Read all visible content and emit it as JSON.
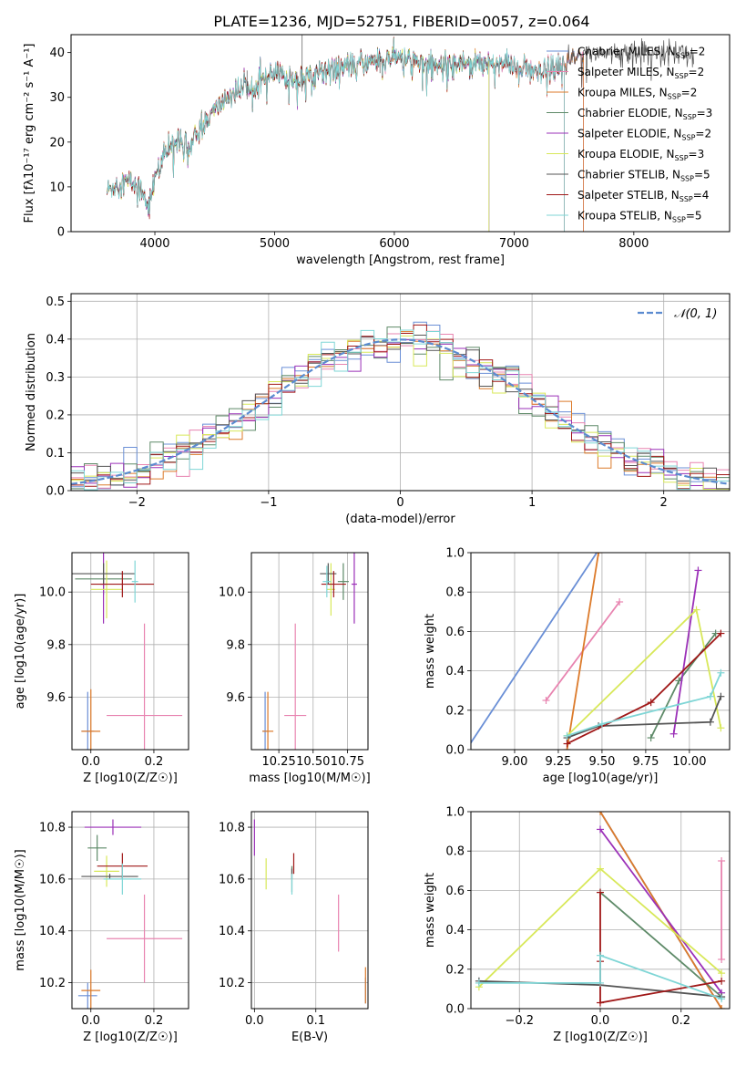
{
  "title": "PLATE=1236, MJD=52751, FIBERID=0057, z=0.064",
  "colors": {
    "Chabrier MILES": "#6a8fd6",
    "Salpeter MILES": "#e884b0",
    "Kroupa MILES": "#dc7a2a",
    "Chabrier ELODIE": "#5e8a68",
    "Salpeter ELODIE": "#9b30b8",
    "Kroupa ELODIE": "#d8e85a",
    "Chabrier STELIB": "#555555",
    "Salpeter STELIB": "#a01818",
    "Kroupa STELIB": "#7fd6d6"
  },
  "chart_data": [
    {
      "id": "spectrum",
      "type": "line",
      "title": "PLATE=1236, MJD=52751, FIBERID=0057, z=0.064",
      "xlabel": "wavelength [Angstrom, rest frame]",
      "ylabel": "Flux [fλ10⁻¹⁷ erg cm⁻² s⁻¹ A⁻¹]",
      "xlim": [
        3300,
        8800
      ],
      "ylim": [
        0,
        44
      ],
      "xticks": [
        4000,
        5000,
        6000,
        7000,
        8000
      ],
      "yticks": [
        0,
        10,
        20,
        30,
        40
      ],
      "grid": false,
      "legend_position": "top-right",
      "continuum": {
        "x": [
          3600,
          3700,
          3800,
          3900,
          3950,
          4000,
          4100,
          4200,
          4300,
          4400,
          4500,
          4600,
          4800,
          5000,
          5200,
          5400,
          5600,
          5800,
          6000,
          6200,
          6400,
          6600,
          6800,
          7000,
          7200,
          7400,
          7600
        ],
        "y": [
          9,
          11,
          11,
          9,
          6,
          12,
          18,
          21,
          19,
          24,
          27,
          30,
          33,
          35,
          34,
          36,
          37,
          38,
          39,
          38,
          37,
          38,
          38,
          37,
          35,
          37,
          40
        ]
      },
      "series": [
        {
          "name": "Chabrier MILES",
          "nssp": "2",
          "xmax": 7580
        },
        {
          "name": "Salpeter MILES",
          "nssp": "2",
          "xmax": 7580
        },
        {
          "name": "Kroupa MILES",
          "nssp": "2",
          "xmax": 7580
        },
        {
          "name": "Chabrier ELODIE",
          "nssp": "3",
          "xmax": 6790
        },
        {
          "name": "Salpeter ELODIE",
          "nssp": "2",
          "xmax": 6790
        },
        {
          "name": "Kroupa ELODIE",
          "nssp": "3",
          "xmax": 6790
        },
        {
          "name": "Chabrier STELIB",
          "nssp": "5",
          "xmax": 8500
        },
        {
          "name": "Salpeter STELIB",
          "nssp": "4",
          "xmax": 7420
        },
        {
          "name": "Kroupa STELIB",
          "nssp": "5",
          "xmax": 7420
        }
      ]
    },
    {
      "id": "residuals",
      "type": "line",
      "xlabel": "(data-model)/error",
      "ylabel": "Normed distribution",
      "xlim": [
        -2.5,
        2.5
      ],
      "ylim": [
        0,
        0.52
      ],
      "xticks": [
        -2,
        -1,
        0,
        1,
        2
      ],
      "yticks": [
        0.0,
        0.1,
        0.2,
        0.3,
        0.4,
        0.5
      ],
      "grid": true,
      "legend_position": "top-right",
      "gaussian_label": "𝒩(0, 1)",
      "bin_width": 0.1,
      "histogram_series": [
        "Chabrier MILES",
        "Salpeter MILES",
        "Kroupa MILES",
        "Chabrier ELODIE",
        "Salpeter ELODIE",
        "Kroupa ELODIE",
        "Chabrier STELIB",
        "Salpeter STELIB",
        "Kroupa STELIB"
      ]
    },
    {
      "id": "age_vs_Z",
      "type": "scatter",
      "xlabel": "Z [log10(Z/Z☉)]",
      "ylabel": "age  [log10(age/yr)]",
      "xlim": [
        -0.06,
        0.31
      ],
      "ylim": [
        9.4,
        10.15
      ],
      "xticks": [
        0.0,
        0.2
      ],
      "yticks": [
        9.6,
        9.8,
        10.0
      ],
      "grid": true,
      "points": [
        {
          "name": "Chabrier MILES",
          "x": -0.01,
          "y": 9.47,
          "xerr": 0.02,
          "yerr": 0.15
        },
        {
          "name": "Salpeter MILES",
          "x": 0.17,
          "y": 9.53,
          "xerr": 0.12,
          "yerr": 0.35
        },
        {
          "name": "Kroupa MILES",
          "x": 0.0,
          "y": 9.47,
          "xerr": 0.03,
          "yerr": 0.16
        },
        {
          "name": "Chabrier ELODIE",
          "x": 0.04,
          "y": 10.05,
          "xerr": 0.09,
          "yerr": 0.06
        },
        {
          "name": "Salpeter ELODIE",
          "x": 0.04,
          "y": 10.03,
          "xerr": 0.01,
          "yerr": 0.15
        },
        {
          "name": "Kroupa ELODIE",
          "x": 0.05,
          "y": 10.01,
          "xerr": 0.05,
          "yerr": 0.11
        },
        {
          "name": "Chabrier STELIB",
          "x": 0.04,
          "y": 10.07,
          "xerr": 0.1,
          "yerr": 0.04
        },
        {
          "name": "Salpeter STELIB",
          "x": 0.1,
          "y": 10.03,
          "xerr": 0.1,
          "yerr": 0.05
        },
        {
          "name": "Kroupa STELIB",
          "x": 0.14,
          "y": 10.04,
          "xerr": 0.01,
          "yerr": 0.08
        }
      ]
    },
    {
      "id": "age_vs_mass",
      "type": "scatter",
      "xlabel": "mass [log10(M/M☉)]",
      "ylabel": "",
      "xlim": [
        10.05,
        10.9
      ],
      "ylim": [
        9.4,
        10.15
      ],
      "xticks": [
        10.25,
        10.5,
        10.75
      ],
      "yticks": [
        9.6,
        9.8,
        10.0
      ],
      "grid": true,
      "points": [
        {
          "name": "Chabrier MILES",
          "x": 10.15,
          "y": 9.47,
          "xerr": 0.02,
          "yerr": 0.15
        },
        {
          "name": "Salpeter MILES",
          "x": 10.37,
          "y": 9.53,
          "xerr": 0.08,
          "yerr": 0.35
        },
        {
          "name": "Kroupa MILES",
          "x": 10.17,
          "y": 9.47,
          "xerr": 0.04,
          "yerr": 0.15
        },
        {
          "name": "Chabrier ELODIE",
          "x": 10.72,
          "y": 10.04,
          "xerr": 0.04,
          "yerr": 0.07
        },
        {
          "name": "Salpeter ELODIE",
          "x": 10.8,
          "y": 10.03,
          "xerr": 0.02,
          "yerr": 0.15
        },
        {
          "name": "Kroupa ELODIE",
          "x": 10.63,
          "y": 10.01,
          "xerr": 0.03,
          "yerr": 0.1
        },
        {
          "name": "Chabrier STELIB",
          "x": 10.61,
          "y": 10.07,
          "xerr": 0.06,
          "yerr": 0.04
        },
        {
          "name": "Salpeter STELIB",
          "x": 10.65,
          "y": 10.03,
          "xerr": 0.09,
          "yerr": 0.05
        },
        {
          "name": "Kroupa STELIB",
          "x": 10.6,
          "y": 10.04,
          "xerr": 0.03,
          "yerr": 0.06
        }
      ]
    },
    {
      "id": "weight_vs_age",
      "type": "line",
      "xlabel": "age  [log10(age/yr)]",
      "ylabel": "mass weight",
      "xlim": [
        8.75,
        10.23
      ],
      "ylim": [
        0,
        1
      ],
      "xticks": [
        9.0,
        9.25,
        9.5,
        9.75,
        10.0
      ],
      "yticks": [
        0.0,
        0.2,
        0.4,
        0.6,
        0.8,
        1.0
      ],
      "grid": true,
      "series": [
        {
          "name": "Chabrier MILES",
          "x": [
            8.5,
            9.47
          ],
          "y": [
            -0.3,
            1.0
          ],
          "markers": false
        },
        {
          "name": "Salpeter MILES",
          "x": [
            9.18,
            9.6
          ],
          "y": [
            0.25,
            0.75
          ],
          "markers": true
        },
        {
          "name": "Kroupa MILES",
          "x": [
            9.3,
            9.48
          ],
          "y": [
            0.0,
            1.0
          ],
          "markers": true
        },
        {
          "name": "Chabrier ELODIE",
          "x": [
            9.78,
            9.94,
            10.15
          ],
          "y": [
            0.06,
            0.35,
            0.59
          ],
          "markers": true
        },
        {
          "name": "Salpeter ELODIE",
          "x": [
            9.91,
            10.05
          ],
          "y": [
            0.08,
            0.91
          ],
          "markers": true
        },
        {
          "name": "Kroupa ELODIE",
          "x": [
            9.3,
            10.04,
            10.18
          ],
          "y": [
            0.07,
            0.71,
            0.11
          ],
          "markers": true
        },
        {
          "name": "Chabrier STELIB",
          "x": [
            9.3,
            9.48,
            10.12,
            10.18
          ],
          "y": [
            0.06,
            0.12,
            0.14,
            0.27
          ],
          "markers": true
        },
        {
          "name": "Salpeter STELIB",
          "x": [
            9.3,
            9.78,
            10.18
          ],
          "y": [
            0.03,
            0.24,
            0.59
          ],
          "markers": true
        },
        {
          "name": "Kroupa STELIB",
          "x": [
            9.3,
            9.5,
            10.12,
            10.18
          ],
          "y": [
            0.07,
            0.13,
            0.27,
            0.39
          ],
          "markers": true
        }
      ]
    },
    {
      "id": "mass_vs_Z",
      "type": "scatter",
      "xlabel": "Z [log10(Z/Z☉)]",
      "ylabel": "mass [log10(M/M☉)]",
      "xlim": [
        -0.06,
        0.31
      ],
      "ylim": [
        10.1,
        10.86
      ],
      "xticks": [
        0.0,
        0.2
      ],
      "yticks": [
        10.2,
        10.4,
        10.6,
        10.8
      ],
      "grid": true,
      "points": [
        {
          "name": "Chabrier MILES",
          "x": -0.01,
          "y": 10.15,
          "xerr": 0.03,
          "yerr": 0.05
        },
        {
          "name": "Salpeter MILES",
          "x": 0.17,
          "y": 10.37,
          "xerr": 0.12,
          "yerr": 0.17
        },
        {
          "name": "Kroupa MILES",
          "x": 0.0,
          "y": 10.17,
          "xerr": 0.03,
          "yerr": 0.08
        },
        {
          "name": "Chabrier ELODIE",
          "x": 0.02,
          "y": 10.72,
          "xerr": 0.03,
          "yerr": 0.05
        },
        {
          "name": "Salpeter ELODIE",
          "x": 0.07,
          "y": 10.8,
          "xerr": 0.09,
          "yerr": 0.03
        },
        {
          "name": "Kroupa ELODIE",
          "x": 0.05,
          "y": 10.63,
          "xerr": 0.04,
          "yerr": 0.06
        },
        {
          "name": "Chabrier STELIB",
          "x": 0.06,
          "y": 10.61,
          "xerr": 0.09,
          "yerr": 0.01
        },
        {
          "name": "Salpeter STELIB",
          "x": 0.1,
          "y": 10.65,
          "xerr": 0.08,
          "yerr": 0.05
        },
        {
          "name": "Kroupa STELIB",
          "x": 0.1,
          "y": 10.6,
          "xerr": 0.06,
          "yerr": 0.06
        }
      ]
    },
    {
      "id": "mass_vs_ebv",
      "type": "scatter",
      "xlabel": "E(B-V)",
      "ylabel": "",
      "xlim": [
        -0.005,
        0.185
      ],
      "ylim": [
        10.1,
        10.86
      ],
      "xticks": [
        0.0,
        0.1
      ],
      "yticks": [
        10.2,
        10.4,
        10.6,
        10.8
      ],
      "grid": true,
      "points": [
        {
          "name": "Chabrier MILES",
          "x": 0.181,
          "y": 10.17,
          "xerr": 0.0,
          "yerr": 0.05
        },
        {
          "name": "Salpeter MILES",
          "x": 0.137,
          "y": 10.43,
          "xerr": 0.0,
          "yerr": 0.11
        },
        {
          "name": "Kroupa MILES",
          "x": 0.181,
          "y": 10.19,
          "xerr": 0.0,
          "yerr": 0.07
        },
        {
          "name": "Chabrier ELODIE",
          "x": 0.061,
          "y": 10.6,
          "xerr": 0.0,
          "yerr": 0.05
        },
        {
          "name": "Salpeter ELODIE",
          "x": 0.0,
          "y": 10.76,
          "xerr": 0.0,
          "yerr": 0.07
        },
        {
          "name": "Kroupa ELODIE",
          "x": 0.019,
          "y": 10.62,
          "xerr": 0.0,
          "yerr": 0.06
        },
        {
          "name": "Chabrier STELIB",
          "x": 0.061,
          "y": 10.62,
          "xerr": 0.0,
          "yerr": 0.02
        },
        {
          "name": "Salpeter STELIB",
          "x": 0.064,
          "y": 10.66,
          "xerr": 0.0,
          "yerr": 0.04
        },
        {
          "name": "Kroupa STELIB",
          "x": 0.061,
          "y": 10.58,
          "xerr": 0.0,
          "yerr": 0.04
        }
      ]
    },
    {
      "id": "weight_vs_Z",
      "type": "line",
      "xlabel": "Z [log10(Z/Z☉)]",
      "ylabel": "mass weight",
      "xlim": [
        -0.32,
        0.32
      ],
      "ylim": [
        0,
        1
      ],
      "xticks": [
        -0.2,
        0.0,
        0.2
      ],
      "yticks": [
        0.0,
        0.2,
        0.4,
        0.6,
        0.8,
        1.0
      ],
      "grid": true,
      "series": [
        {
          "name": "Chabrier MILES",
          "x": [
            0.0,
            0.3
          ],
          "y": [
            1.0,
            0.0
          ],
          "markers": false
        },
        {
          "name": "Salpeter MILES",
          "x": [
            0.3,
            0.3
          ],
          "y": [
            0.25,
            0.75
          ],
          "markers": true
        },
        {
          "name": "Kroupa MILES",
          "x": [
            0.0,
            0.3
          ],
          "y": [
            1.0,
            0.0
          ],
          "markers": true
        },
        {
          "name": "Chabrier ELODIE",
          "x": [
            0.0,
            0.3
          ],
          "y": [
            0.59,
            0.06
          ],
          "markers": true
        },
        {
          "name": "Salpeter ELODIE",
          "x": [
            0.0,
            0.3
          ],
          "y": [
            0.91,
            0.08
          ],
          "markers": true
        },
        {
          "name": "Kroupa ELODIE",
          "x": [
            -0.3,
            0.0,
            0.3
          ],
          "y": [
            0.11,
            0.71,
            0.18
          ],
          "markers": true
        },
        {
          "name": "Chabrier STELIB",
          "x": [
            -0.3,
            0.0,
            0.3
          ],
          "y": [
            0.14,
            0.12,
            0.06
          ],
          "markers": true
        },
        {
          "name": "Salpeter STELIB",
          "x": [
            0.0,
            0.0,
            0.0,
            0.3
          ],
          "y": [
            0.59,
            0.24,
            0.03,
            0.14
          ],
          "markers": true
        },
        {
          "name": "Kroupa STELIB",
          "x": [
            -0.3,
            0.0,
            0.0,
            0.3
          ],
          "y": [
            0.13,
            0.13,
            0.27,
            0.05
          ],
          "markers": true
        }
      ]
    }
  ]
}
